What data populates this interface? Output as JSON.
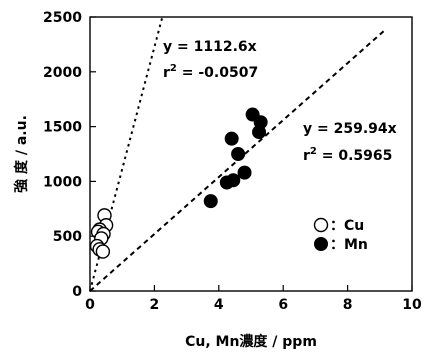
{
  "chart_data": {
    "type": "scatter",
    "xlabel": "Cu, Mn濃度 / ppm",
    "ylabel": "強 度 / a.u.",
    "xlim": [
      0,
      10
    ],
    "ylim": [
      0,
      2500
    ],
    "xticks": [
      0,
      2,
      4,
      6,
      8,
      10
    ],
    "yticks": [
      0,
      500,
      1000,
      1500,
      2000,
      2500
    ],
    "grid": false,
    "legend_position": "right-middle",
    "series": [
      {
        "name": "Cu",
        "legend_label": "：Cu",
        "marker": "open-circle",
        "color": "#000000",
        "points": [
          {
            "x": 0.45,
            "y": 690
          },
          {
            "x": 0.5,
            "y": 600
          },
          {
            "x": 0.3,
            "y": 560
          },
          {
            "x": 0.25,
            "y": 540
          },
          {
            "x": 0.42,
            "y": 520
          },
          {
            "x": 0.35,
            "y": 480
          },
          {
            "x": 0.22,
            "y": 410
          },
          {
            "x": 0.3,
            "y": 380
          },
          {
            "x": 0.4,
            "y": 360
          }
        ]
      },
      {
        "name": "Mn",
        "legend_label": "：Mn",
        "marker": "filled-circle",
        "color": "#000000",
        "points": [
          {
            "x": 5.05,
            "y": 1610
          },
          {
            "x": 5.3,
            "y": 1540
          },
          {
            "x": 5.25,
            "y": 1450
          },
          {
            "x": 4.4,
            "y": 1390
          },
          {
            "x": 4.6,
            "y": 1250
          },
          {
            "x": 4.8,
            "y": 1080
          },
          {
            "x": 4.45,
            "y": 1010
          },
          {
            "x": 4.25,
            "y": 990
          },
          {
            "x": 3.75,
            "y": 820
          }
        ]
      }
    ],
    "fit_lines": [
      {
        "series": "Cu",
        "slope": 1112.6,
        "equation": "y = 1112.6x",
        "r2_prefix": "r",
        "r2_exp": "2",
        "r2_value": " = -0.0507",
        "x_range": [
          0,
          2.25
        ],
        "style": "dotted"
      },
      {
        "series": "Mn",
        "slope": 259.94,
        "equation": "y = 259.94x",
        "r2_prefix": "r",
        "r2_exp": "2",
        "r2_value": " = 0.5965",
        "x_range": [
          0,
          9.2
        ],
        "style": "dashed"
      }
    ]
  }
}
